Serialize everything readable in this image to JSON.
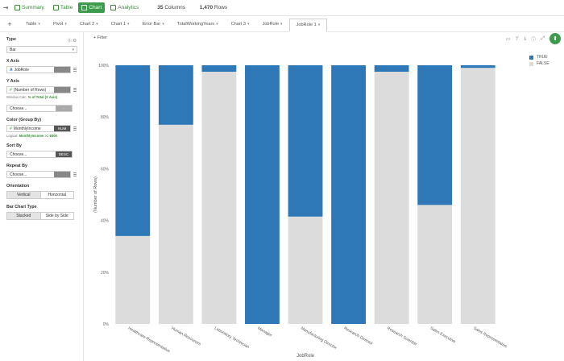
{
  "topbar": {
    "views": [
      {
        "label": "Summary",
        "icon": "summary-icon",
        "active": false
      },
      {
        "label": "Table",
        "icon": "table-icon",
        "active": false
      },
      {
        "label": "Chart",
        "icon": "chart-icon",
        "active": true
      },
      {
        "label": "Analytics",
        "icon": "bulb-icon",
        "active": false
      }
    ],
    "columns_count": "35",
    "columns_label": "Columns",
    "rows_count": "1,470",
    "rows_label": "Rows"
  },
  "tabs": [
    "Table",
    "Pivot",
    "Chart 2",
    "Chart 1",
    "Error Bar",
    "TotalWorkingYears",
    "Chart 3",
    "JobRole",
    "JobRole 1"
  ],
  "active_tab": "JobRole 1",
  "panel": {
    "type_label": "Type",
    "type_value": "Bar",
    "xaxis_label": "X Axis",
    "xaxis_value": "JobRole",
    "yaxis_label": "Y Axis",
    "yaxis_value": "(Number of Rows)",
    "window_calc_prefix": "Window Calc:",
    "window_calc_value": "% of Total (X Axis)",
    "choose_placeholder": "Choose...",
    "color_label": "Color (Group By)",
    "color_value": "MonthlyIncome",
    "color_type": "NUM",
    "logical_prefix": "Logical:",
    "logical_value": "MonthlyIncome >= 6000",
    "sortby_label": "Sort By",
    "sortby_value": "Choose...",
    "sort_dir": "DESC",
    "repeatby_label": "Repeat By",
    "repeatby_value": "Choose...",
    "orientation_label": "Orientation",
    "orientation_options": [
      "Vertical",
      "Horizontal"
    ],
    "bartype_label": "Bar Chart Type",
    "bartype_options": [
      "Stacked",
      "Side by Side"
    ]
  },
  "filter_label": "Filter",
  "colors": {
    "true": "#2e78b7",
    "false": "#dcdcdd",
    "accent": "#3e9a4c"
  },
  "chart_data": {
    "type": "bar",
    "stacked": true,
    "xlabel": "JobRole",
    "ylabel": "(Number of Rows)",
    "yticks": [
      "0%",
      "20%",
      "40%",
      "60%",
      "80%",
      "100%"
    ],
    "ylim": [
      0,
      100
    ],
    "categories": [
      "Healthcare Representative",
      "Human Resources",
      "Laboratory Technician",
      "Manager",
      "Manufacturing Director",
      "Research Director",
      "Research Scientist",
      "Sales Executive",
      "Sales Representative"
    ],
    "series": [
      {
        "name": "FALSE",
        "values": [
          34,
          77,
          97.5,
          0,
          41.5,
          0,
          97.5,
          46,
          99
        ]
      },
      {
        "name": "TRUE",
        "values": [
          66,
          23,
          2.5,
          100,
          58.5,
          100,
          2.5,
          54,
          1
        ]
      }
    ],
    "legend_position": "top-right"
  }
}
